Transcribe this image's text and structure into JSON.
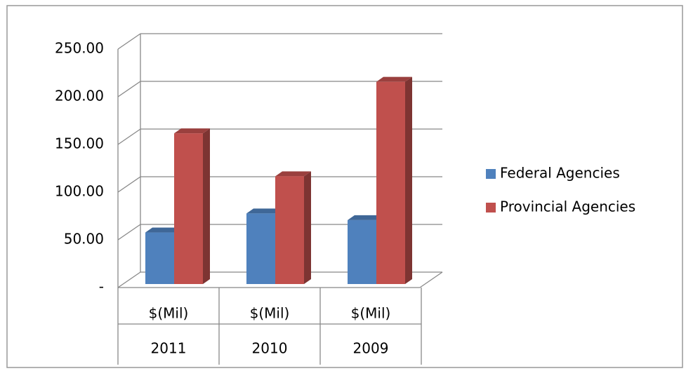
{
  "chart_data": {
    "type": "bar3d",
    "categories": [
      [
        "$(Mil)",
        "2011"
      ],
      [
        "$(Mil)",
        "2010"
      ],
      [
        "$(Mil)",
        "2009"
      ]
    ],
    "series": [
      {
        "name": "Federal Agencies",
        "color": "#4f81bd",
        "values": [
          54,
          74,
          67
        ]
      },
      {
        "name": "Provincial Agencies",
        "color": "#c0504d",
        "values": [
          158,
          113,
          212
        ]
      }
    ],
    "ylim": [
      0,
      250
    ],
    "yticks": [
      {
        "value": 0,
        "label": "-"
      },
      {
        "value": 50,
        "label": "50.00"
      },
      {
        "value": 100,
        "label": "100.00"
      },
      {
        "value": 150,
        "label": "150.00"
      },
      {
        "value": 200,
        "label": "200.00"
      },
      {
        "value": 250,
        "label": "250.00"
      }
    ],
    "grid": true,
    "legend": "right"
  }
}
